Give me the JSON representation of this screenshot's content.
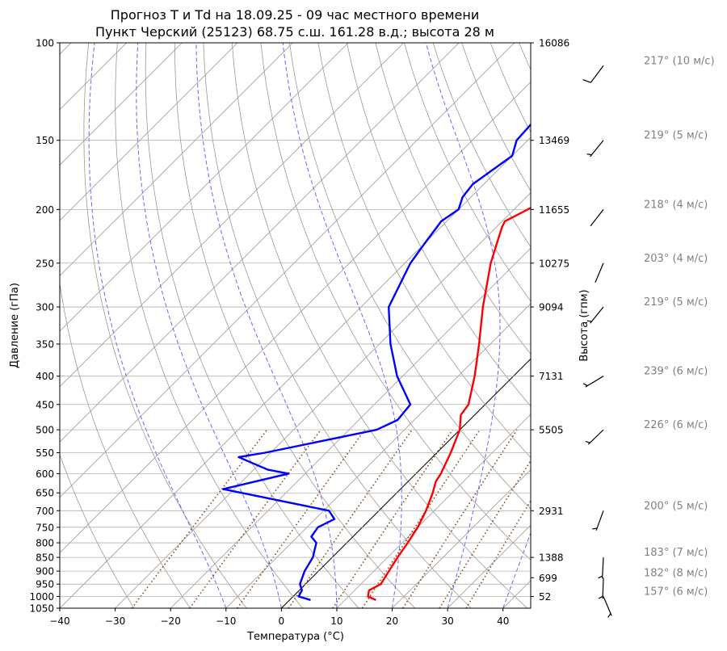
{
  "chart_data": {
    "type": "line",
    "title_line1": "Прогноз T и Td на 18.09.25 - 09 час местного времени",
    "title_line2": "Пункт Черский (25123) 68.75 с.ш. 161.28 в.д.; высота 28 м",
    "xlabel": "Температура (°C)",
    "ylabel": "Давление (гПа)",
    "ylabel_right": "Высота (гпм)",
    "xlim": [
      -40,
      45
    ],
    "ylim": [
      1050,
      100
    ],
    "x_ticks": [
      -40,
      -30,
      -20,
      -10,
      0,
      10,
      20,
      30,
      40
    ],
    "y_ticks": [
      100,
      150,
      200,
      250,
      300,
      350,
      400,
      450,
      500,
      550,
      600,
      650,
      700,
      750,
      800,
      850,
      900,
      950,
      1000,
      1050
    ],
    "height_ticks": [
      {
        "p": 100,
        "label": "16086"
      },
      {
        "p": 150,
        "label": "13469"
      },
      {
        "p": 200,
        "label": "11655"
      },
      {
        "p": 250,
        "label": "10275"
      },
      {
        "p": 300,
        "label": "9094"
      },
      {
        "p": 400,
        "label": "7131"
      },
      {
        "p": 500,
        "label": "5505"
      },
      {
        "p": 700,
        "label": "2931"
      },
      {
        "p": 850,
        "label": "1388"
      },
      {
        "p": 925,
        "label": "699"
      },
      {
        "p": 1000,
        "label": "52"
      }
    ],
    "series": [
      {
        "key": "temperature",
        "color": "#ff0000",
        "points": [
          [
            1015,
            15.6
          ],
          [
            1000,
            13.5
          ],
          [
            975,
            12.6
          ],
          [
            950,
            13.6
          ],
          [
            900,
            12.7
          ],
          [
            850,
            11.8
          ],
          [
            800,
            11.0
          ],
          [
            750,
            10.0
          ],
          [
            700,
            8.5
          ],
          [
            650,
            6.5
          ],
          [
            620,
            5.0
          ],
          [
            600,
            4.5
          ],
          [
            550,
            2.5
          ],
          [
            500,
            0.0
          ],
          [
            470,
            -2.5
          ],
          [
            450,
            -3.0
          ],
          [
            400,
            -7.0
          ],
          [
            350,
            -12.0
          ],
          [
            300,
            -18.0
          ],
          [
            250,
            -24.5
          ],
          [
            230,
            -27.0
          ],
          [
            215,
            -29.0
          ],
          [
            210,
            -29.5
          ],
          [
            200,
            -27.5
          ],
          [
            180,
            -24.0
          ],
          [
            160,
            -23.0
          ],
          [
            140,
            -24.0
          ],
          [
            120,
            -23.0
          ],
          [
            105,
            -19.5
          ]
        ]
      },
      {
        "key": "dewpoint",
        "color": "#0000ff",
        "points": [
          [
            1015,
            3.8
          ],
          [
            1000,
            1.0
          ],
          [
            975,
            0.5
          ],
          [
            950,
            -1.0
          ],
          [
            900,
            -2.5
          ],
          [
            850,
            -3.5
          ],
          [
            800,
            -5.5
          ],
          [
            780,
            -7.5
          ],
          [
            750,
            -8.0
          ],
          [
            725,
            -6.5
          ],
          [
            700,
            -9.0
          ],
          [
            640,
            -32.0
          ],
          [
            600,
            -23.0
          ],
          [
            590,
            -27.5
          ],
          [
            580,
            -30.0
          ],
          [
            560,
            -35.0
          ],
          [
            550,
            -31.0
          ],
          [
            500,
            -15.0
          ],
          [
            480,
            -13.0
          ],
          [
            450,
            -13.5
          ],
          [
            400,
            -21.0
          ],
          [
            350,
            -28.0
          ],
          [
            300,
            -35.0
          ],
          [
            250,
            -39.0
          ],
          [
            230,
            -40.0
          ],
          [
            210,
            -41.0
          ],
          [
            200,
            -40.0
          ],
          [
            190,
            -41.5
          ],
          [
            180,
            -42.0
          ],
          [
            160,
            -40.0
          ],
          [
            150,
            -42.0
          ],
          [
            120,
            -43.0
          ],
          [
            100,
            -41.0
          ]
        ]
      }
    ],
    "wind": [
      {
        "p": 110,
        "dir": 217,
        "speed": 10,
        "label": "217° (10 м/с)"
      },
      {
        "p": 150,
        "dir": 219,
        "speed": 5,
        "label": "219° (5 м/с)"
      },
      {
        "p": 200,
        "dir": 218,
        "speed": 4,
        "label": "218° (4 м/с)"
      },
      {
        "p": 250,
        "dir": 203,
        "speed": 4,
        "label": "203° (4 м/с)"
      },
      {
        "p": 300,
        "dir": 219,
        "speed": 5,
        "label": "219° (5 м/с)"
      },
      {
        "p": 400,
        "dir": 239,
        "speed": 6,
        "label": "239° (6 м/с)"
      },
      {
        "p": 500,
        "dir": 226,
        "speed": 6,
        "label": "226° (6 м/с)"
      },
      {
        "p": 700,
        "dir": 200,
        "speed": 5,
        "label": "200° (5 м/с)"
      },
      {
        "p": 850,
        "dir": 183,
        "speed": 7,
        "label": "183° (7 м/с)"
      },
      {
        "p": 925,
        "dir": 182,
        "speed": 8,
        "label": "182° (8 м/с)"
      },
      {
        "p": 1000,
        "dir": 157,
        "speed": 6,
        "label": "157° (6 м/с)"
      }
    ],
    "grid": true,
    "background_lines": {
      "isotherm_color": "#999999",
      "dry_adiabat_color": "#999999",
      "moist_adiabat_color": "#6666ff",
      "mixing_ratio_color": "#8b4513",
      "reference_line_color": "#000000"
    }
  }
}
